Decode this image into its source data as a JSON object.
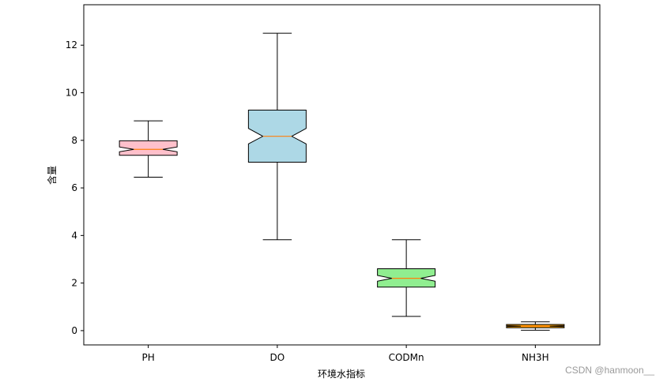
{
  "chart_data": {
    "type": "box",
    "title": "",
    "xlabel": "环境水指标",
    "ylabel": "含量",
    "ylim": [
      -0.6,
      13.7
    ],
    "yticks": [
      0,
      2,
      4,
      6,
      8,
      10,
      12
    ],
    "notched": true,
    "grid": false,
    "categories": [
      "PH",
      "DO",
      "CODMn",
      "NH3H"
    ],
    "boxes": [
      {
        "name": "PH",
        "whislo": 6.45,
        "q1": 7.37,
        "med": 7.62,
        "q3": 7.98,
        "whishi": 8.82,
        "notch_lo": 7.52,
        "notch_hi": 7.72,
        "color": "#ffc0cb"
      },
      {
        "name": "DO",
        "whislo": 3.82,
        "q1": 7.08,
        "med": 8.17,
        "q3": 9.27,
        "whishi": 12.5,
        "notch_lo": 7.85,
        "notch_hi": 8.5,
        "color": "#add8e6"
      },
      {
        "name": "CODMn",
        "whislo": 0.6,
        "q1": 1.83,
        "med": 2.2,
        "q3": 2.6,
        "whishi": 3.82,
        "notch_lo": 2.08,
        "notch_hi": 2.32,
        "color": "#90ee90"
      },
      {
        "name": "NH3H",
        "whislo": 0.02,
        "q1": 0.12,
        "med": 0.19,
        "q3": 0.26,
        "whishi": 0.37,
        "notch_lo": 0.17,
        "notch_hi": 0.21,
        "color": "#ffa500"
      }
    ],
    "median_color": "#ff7f0e"
  },
  "watermark": "CSDN @hanmoon__"
}
